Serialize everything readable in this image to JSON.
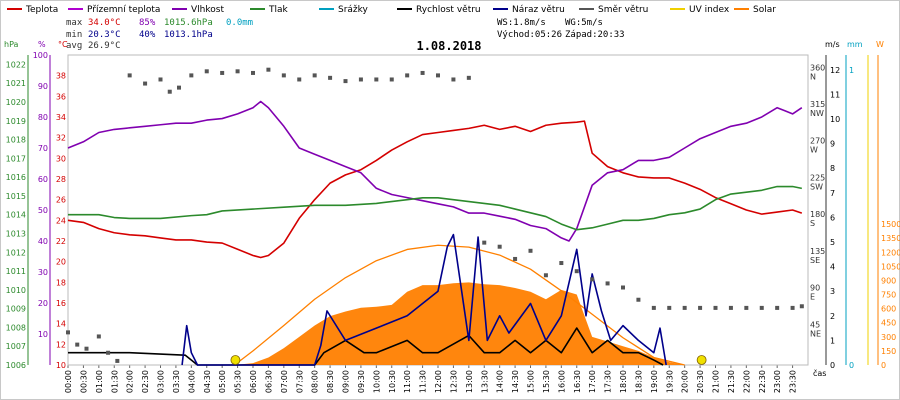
{
  "chart_data": {
    "type": "line",
    "title": "1.08.2018",
    "legend": [
      {
        "label": "Teplota",
        "color": "#d40000"
      },
      {
        "label": "Přízemní teplota",
        "color": "#b000d0"
      },
      {
        "label": "Vlhkost",
        "color": "#8000b0"
      },
      {
        "label": "Tlak",
        "color": "#2c8a2c"
      },
      {
        "label": "Srážky",
        "color": "#00a0c0"
      },
      {
        "label": "Rychlost větru",
        "color": "#000000"
      },
      {
        "label": "Náraz větru",
        "color": "#00008b"
      },
      {
        "label": "Směr větru",
        "color": "#555555"
      },
      {
        "label": "UV index",
        "color": "#f0d000"
      },
      {
        "label": "Solar",
        "color": "#ff8000"
      }
    ],
    "stats": {
      "max_label": "max",
      "max_temp": "34.0°C",
      "max_hum": "85%",
      "max_press": "1015.6hPa",
      "max_rain": "0.0mm",
      "min_label": "min",
      "min_temp": "20.3°C",
      "min_hum": "40%",
      "min_press": "1013.1hPa",
      "avg_label": "avg",
      "avg_temp": "26.9°C",
      "ws": "WS:1.8m/s",
      "wg": "WG:5m/s",
      "sunrise": "Východ:05:26",
      "sunset": "Západ:20:33"
    },
    "axis_titles": {
      "press": "hPa",
      "hum": "%",
      "temp": "°C",
      "wind": "m/s",
      "rain": "mm",
      "solar": "W",
      "x": "čas"
    },
    "axes": {
      "temp": {
        "ticks": [
          10,
          12,
          14,
          16,
          18,
          20,
          22,
          24,
          26,
          28,
          30,
          32,
          34,
          36,
          38
        ],
        "range": [
          10,
          40
        ]
      },
      "hum": {
        "ticks": [
          10,
          20,
          30,
          40,
          50,
          60,
          70,
          80,
          90,
          100
        ],
        "range": [
          0,
          100
        ]
      },
      "press": {
        "ticks": [
          1006,
          1007,
          1008,
          1009,
          1010,
          1011,
          1012,
          1013,
          1014,
          1015,
          1016,
          1017,
          1018,
          1019,
          1020,
          1021,
          1022
        ],
        "range": [
          1006,
          1022.5
        ]
      },
      "wind": {
        "ticks": [
          0,
          1,
          2,
          3,
          4,
          5,
          6,
          7,
          8,
          9,
          10,
          11,
          12
        ],
        "range": [
          0,
          12.6
        ]
      },
      "dir": {
        "ticks": [
          {
            "v": 45,
            "l": "NE"
          },
          {
            "v": 90,
            "l": "E"
          },
          {
            "v": 135,
            "l": "SE"
          },
          {
            "v": 180,
            "l": "S"
          },
          {
            "v": 225,
            "l": "SW"
          },
          {
            "v": 270,
            "l": "W"
          },
          {
            "v": 315,
            "l": "NW"
          },
          {
            "v": 360,
            "l": "N"
          }
        ],
        "range": [
          0,
          380
        ]
      },
      "rain": {
        "ticks": [
          {
            "v": 0,
            "l": "0"
          },
          {
            "v": 1,
            "l": "1"
          }
        ],
        "range": [
          0,
          1.05
        ]
      },
      "solar": {
        "ticks": [
          0,
          150,
          300,
          450,
          600,
          750,
          900,
          1050,
          1200,
          1350,
          1500
        ],
        "range": [
          0,
          3300
        ]
      },
      "x": {
        "range": [
          0,
          24
        ],
        "labels": [
          "00:00",
          "00:30",
          "01:00",
          "01:30",
          "02:00",
          "02:30",
          "03:00",
          "03:30",
          "04:00",
          "04:30",
          "05:00",
          "05:30",
          "06:00",
          "06:30",
          "07:00",
          "07:30",
          "08:00",
          "08:30",
          "09:00",
          "09:30",
          "10:00",
          "10:30",
          "11:00",
          "11:30",
          "12:00",
          "12:30",
          "13:00",
          "13:30",
          "14:00",
          "14:30",
          "15:00",
          "15:30",
          "16:00",
          "16:30",
          "17:00",
          "17:30",
          "18:00",
          "18:30",
          "19:00",
          "19:30",
          "20:00",
          "20:30",
          "21:00",
          "21:30",
          "22:00",
          "22:30",
          "23:00",
          "23:30"
        ]
      }
    },
    "series": [
      {
        "name": "Teplota",
        "color": "#d40000",
        "axis": "temp",
        "x": [
          0,
          0.5,
          1,
          1.5,
          2,
          2.5,
          3,
          3.5,
          4,
          4.5,
          5,
          5.5,
          6,
          6.25,
          6.5,
          7,
          7.5,
          8,
          8.5,
          9,
          9.5,
          10,
          10.5,
          11,
          11.5,
          12,
          12.5,
          13,
          13.5,
          14,
          14.5,
          15,
          15.5,
          16,
          16.5,
          16.75,
          17,
          17.5,
          18,
          18.5,
          19,
          19.5,
          20,
          20.5,
          21,
          21.5,
          22,
          22.5,
          23,
          23.5,
          23.8
        ],
        "y": [
          24,
          23.8,
          23.2,
          22.8,
          22.6,
          22.5,
          22.3,
          22.1,
          22.1,
          21.9,
          21.8,
          21.2,
          20.6,
          20.4,
          20.6,
          21.8,
          24.2,
          26,
          27.6,
          28.4,
          28.9,
          29.8,
          30.8,
          31.6,
          32.3,
          32.5,
          32.7,
          32.9,
          33.2,
          32.8,
          33.1,
          32.6,
          33.2,
          33.4,
          33.5,
          33.6,
          30.5,
          29.2,
          28.6,
          28.2,
          28.1,
          28.1,
          27.6,
          27,
          26.2,
          25.6,
          25,
          24.6,
          24.8,
          25,
          24.7
        ]
      },
      {
        "name": "Vlhkost",
        "color": "#8000b0",
        "axis": "hum",
        "x": [
          0,
          0.5,
          1,
          1.5,
          2,
          2.5,
          3,
          3.5,
          4,
          4.5,
          5,
          5.5,
          6,
          6.25,
          6.5,
          7,
          7.5,
          8,
          8.5,
          9,
          9.5,
          10,
          10.5,
          11,
          11.5,
          12,
          12.5,
          13,
          13.5,
          14,
          14.5,
          15,
          15.5,
          16,
          16.25,
          16.5,
          17,
          17.5,
          18,
          18.5,
          19,
          19.5,
          20,
          20.5,
          21,
          21.5,
          22,
          22.5,
          23,
          23.25,
          23.5,
          23.8
        ],
        "y": [
          70,
          72,
          75,
          76,
          76.5,
          77,
          77.5,
          78,
          78,
          79,
          79.5,
          81,
          83,
          85,
          83,
          77,
          70,
          68,
          66,
          64,
          62,
          57,
          55,
          54,
          53,
          52,
          51,
          49,
          49,
          48,
          47,
          45,
          44,
          41,
          40,
          44,
          58,
          62,
          63,
          66,
          66,
          67,
          70,
          73,
          75,
          77,
          78,
          80,
          83,
          82,
          81,
          83
        ]
      },
      {
        "name": "Tlak",
        "color": "#2c8a2c",
        "axis": "press",
        "x": [
          0,
          1,
          1.5,
          2,
          3,
          4,
          4.5,
          5,
          6,
          7,
          8,
          9,
          10,
          11,
          11.5,
          12,
          12.5,
          13,
          13.5,
          14,
          14.5,
          15,
          15.5,
          16,
          16.5,
          17,
          17.5,
          18,
          18.5,
          19,
          19.5,
          20,
          20.5,
          21,
          21.5,
          22,
          22.5,
          23,
          23.5,
          23.8
        ],
        "y": [
          1014,
          1014,
          1013.85,
          1013.8,
          1013.8,
          1013.95,
          1014,
          1014.2,
          1014.3,
          1014.4,
          1014.5,
          1014.5,
          1014.6,
          1014.8,
          1014.9,
          1014.9,
          1014.8,
          1014.7,
          1014.6,
          1014.5,
          1014.3,
          1014.1,
          1013.9,
          1013.5,
          1013.2,
          1013.3,
          1013.5,
          1013.7,
          1013.7,
          1013.8,
          1014,
          1014.1,
          1014.3,
          1014.8,
          1015.1,
          1015.2,
          1015.3,
          1015.5,
          1015.5,
          1015.4
        ]
      },
      {
        "name": "Solar",
        "color": "#ff8000",
        "axis": "solar",
        "kind": "area",
        "x": [
          5.4,
          6,
          6.5,
          7,
          7.5,
          8,
          8.5,
          9,
          9.5,
          10,
          10.5,
          11,
          11.5,
          12,
          12.5,
          13,
          13.5,
          14,
          14.5,
          15,
          15.5,
          16,
          16.5,
          17,
          17.5,
          18,
          18.5,
          19,
          19.5,
          20
        ],
        "y": [
          0,
          20,
          80,
          180,
          300,
          420,
          520,
          570,
          610,
          620,
          640,
          780,
          850,
          850,
          870,
          880,
          860,
          850,
          820,
          780,
          700,
          800,
          750,
          300,
          250,
          200,
          150,
          80,
          30,
          0
        ]
      },
      {
        "name": "Solar",
        "color": "#ff8000",
        "axis": "solar",
        "kind": "curve",
        "x": [
          5.4,
          6,
          7,
          8,
          9,
          10,
          11,
          12,
          13,
          14,
          15,
          16,
          17,
          18,
          19,
          20
        ],
        "y": [
          0,
          150,
          420,
          700,
          930,
          1110,
          1230,
          1275,
          1255,
          1170,
          1020,
          790,
          540,
          290,
          80,
          0
        ]
      },
      {
        "name": "Rychlost větru",
        "color": "#000000",
        "axis": "wind",
        "x": [
          0,
          2,
          3.8,
          4.2,
          8,
          8.3,
          9,
          9.6,
          10,
          11,
          11.5,
          12,
          13,
          13.5,
          14,
          14.5,
          15,
          15.5,
          16,
          16.5,
          17,
          17.5,
          18,
          18.5,
          19,
          19.3
        ],
        "y": [
          0.5,
          0.5,
          0.4,
          0,
          0,
          0.5,
          1,
          0.5,
          0.5,
          1,
          0.5,
          0.5,
          1.2,
          0.5,
          0.5,
          1,
          0.5,
          1,
          0.5,
          1.5,
          0.5,
          1,
          0.5,
          0.5,
          0.2,
          0
        ]
      },
      {
        "name": "Náraz větru",
        "color": "#00008b",
        "axis": "wind",
        "x": [
          3.7,
          3.85,
          4,
          4.2,
          8,
          8.2,
          8.4,
          9,
          10,
          11,
          12,
          12.3,
          12.5,
          13,
          13.3,
          13.6,
          14,
          14.3,
          15,
          15.5,
          16,
          16.5,
          16.8,
          17,
          17.3,
          17.6,
          18,
          18.5,
          19,
          19.2,
          19.4
        ],
        "y": [
          0,
          1.6,
          0.5,
          0,
          0,
          0.8,
          2.2,
          1,
          1.5,
          2,
          3,
          4.8,
          5.3,
          1,
          5.2,
          1,
          2,
          1.3,
          2.5,
          1,
          2,
          4.7,
          2,
          3.7,
          2.2,
          1,
          1.6,
          1,
          0.5,
          1.5,
          0
        ]
      },
      {
        "name": "Směr větru",
        "color": "#555555",
        "axis": "dir",
        "kind": "dots",
        "x": [
          0,
          0.3,
          0.6,
          1,
          1.3,
          1.6,
          2,
          2.5,
          3,
          3.3,
          3.6,
          4,
          4.5,
          5,
          5.5,
          6,
          6.5,
          7,
          7.5,
          8,
          8.5,
          9,
          9.5,
          10,
          10.5,
          11,
          11.5,
          12,
          12.5,
          13,
          13.5,
          14,
          14.5,
          15,
          15.5,
          16,
          16.5,
          17,
          17.5,
          18,
          18.5,
          19,
          19.5,
          20,
          20.5,
          21,
          21.5,
          22,
          22.5,
          23,
          23.5,
          23.8
        ],
        "y": [
          40,
          25,
          20,
          35,
          15,
          5,
          355,
          345,
          350,
          335,
          340,
          355,
          360,
          358,
          360,
          358,
          362,
          355,
          350,
          355,
          352,
          348,
          350,
          350,
          350,
          355,
          358,
          355,
          350,
          352,
          150,
          145,
          130,
          140,
          110,
          125,
          115,
          105,
          100,
          95,
          80,
          70,
          70,
          70,
          70,
          70,
          70,
          70,
          70,
          70,
          70,
          72
        ]
      }
    ],
    "markers": [
      {
        "name": "sunrise-marker",
        "x": 5.43
      },
      {
        "name": "sunset-marker",
        "x": 20.55
      }
    ]
  }
}
